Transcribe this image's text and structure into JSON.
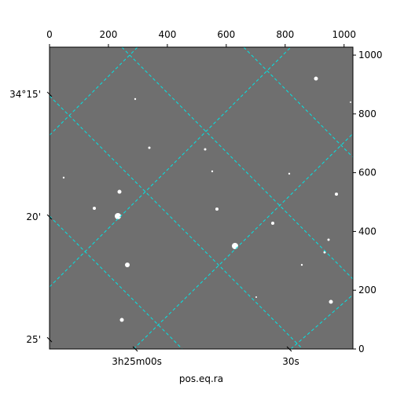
{
  "chart_data": {
    "type": "image",
    "xlabel": "pos.eq.ra",
    "xlim": [
      0,
      1030
    ],
    "xticks": [
      0,
      200,
      400,
      600,
      800,
      1000
    ],
    "ylim": [
      0,
      1027
    ],
    "yticks": [
      0,
      200,
      400,
      600,
      800,
      1000
    ],
    "ra_lim": [
      -16.7,
      42.4
    ],
    "ra_ticks": [
      {
        "value": 0,
        "label": "3h25m00s"
      },
      {
        "value": 30,
        "label": "30s"
      }
    ],
    "dec_lim": [
      25.38,
      13.08
    ],
    "dec_ticks": [
      {
        "value": 15,
        "label": "34°15'"
      },
      {
        "value": 20,
        "label": "20'"
      },
      {
        "value": 25,
        "label": "25'"
      }
    ],
    "grid_color": "#00e5e5"
  }
}
